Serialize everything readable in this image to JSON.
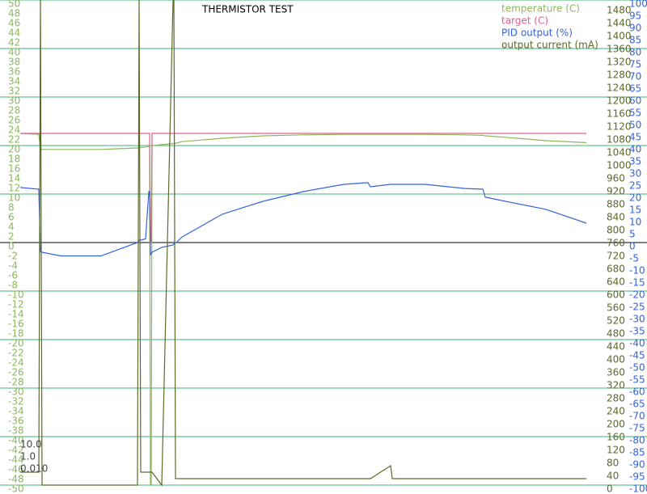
{
  "chart_data": {
    "type": "line",
    "title": "THERMISTOR TEST",
    "x": [
      0,
      23,
      25,
      27,
      50,
      100,
      145,
      147,
      149,
      155,
      159,
      160,
      161,
      162,
      163,
      175,
      189,
      190,
      192,
      193,
      200,
      250,
      300,
      350,
      400,
      430,
      433,
      458,
      460,
      500,
      550,
      572,
      575,
      600,
      650,
      700
    ],
    "xlim": [
      0,
      700
    ],
    "series": [
      {
        "name": "temperature (C)",
        "color": "#8db85a",
        "axis": "y",
        "values": [
          22.5,
          22.3,
          19.3,
          19.2,
          19.2,
          19.2,
          19.5,
          19.6,
          19.6,
          19.7,
          19.8,
          19.8,
          -50,
          -50,
          20,
          20.2,
          20.4,
          20.4,
          20.5,
          20.5,
          20.8,
          21.5,
          22,
          22.2,
          22.3,
          22.3,
          22.3,
          22.3,
          22.3,
          22.3,
          22.2,
          22.1,
          22,
          21.7,
          21,
          20.6
        ]
      },
      {
        "name": "target (C)",
        "color": "#e0608c",
        "axis": "y",
        "values": [
          22.5,
          22.5,
          22.5,
          22.5,
          22.5,
          22.5,
          22.5,
          22.5,
          22.5,
          22.5,
          22.5,
          22.5,
          0,
          0,
          22.5,
          22.5,
          22.5,
          22.5,
          22.5,
          22.5,
          22.5,
          22.5,
          22.5,
          22.5,
          22.5,
          22.5,
          22.5,
          22.5,
          22.5,
          22.5,
          22.5,
          22.5,
          22.5,
          22.5,
          22.5,
          22.5
        ]
      },
      {
        "name": "PID output (%)",
        "color": "#3462e0",
        "axis": "y2",
        "values": [
          22.7,
          22,
          -3.7,
          -4,
          -5.5,
          -5.5,
          0,
          1,
          1,
          1.5,
          21,
          21,
          -5,
          -4.5,
          -4,
          -2,
          -1,
          -0.5,
          0,
          0,
          2.3,
          11.7,
          17,
          21,
          24,
          24.7,
          23,
          24,
          24,
          24,
          22.3,
          22,
          18.7,
          17,
          13.7,
          8
        ]
      },
      {
        "name": "output current (mA)",
        "color": "#5a6a2a",
        "axis": "y3",
        "values": [
          40,
          40,
          1500,
          0,
          0,
          0,
          0,
          1500,
          40,
          40,
          40,
          40,
          40,
          40,
          40,
          0,
          1500,
          1500,
          20,
          20,
          20,
          20,
          20,
          20,
          20,
          20,
          20,
          60,
          20,
          20,
          20,
          20,
          20,
          20,
          20,
          20
        ]
      }
    ],
    "ylim": [
      -50,
      50
    ],
    "yticks": [
      -50,
      -48,
      -46,
      -44,
      -42,
      -40,
      -38,
      -36,
      -34,
      -32,
      -30,
      -28,
      -26,
      -24,
      -22,
      -20,
      -18,
      -16,
      -14,
      -12,
      -10,
      -8,
      -6,
      -4,
      -2,
      0,
      2,
      4,
      6,
      8,
      10,
      12,
      14,
      16,
      18,
      20,
      22,
      24,
      26,
      28,
      30,
      32,
      34,
      36,
      38,
      40,
      42,
      44,
      46,
      48,
      50
    ],
    "y2lim": [
      -100,
      100
    ],
    "y2ticks": [
      -100,
      -95,
      -90,
      -85,
      -80,
      -75,
      -70,
      -65,
      -60,
      -55,
      -50,
      -45,
      -40,
      -35,
      -30,
      -25,
      -20,
      -15,
      -10,
      -5,
      0,
      5,
      10,
      15,
      20,
      25,
      30,
      35,
      40,
      45,
      50,
      55,
      60,
      65,
      70,
      75,
      80,
      85,
      90,
      95,
      100
    ],
    "y3lim": [
      0,
      1500
    ],
    "y3ticks": [
      0,
      40,
      80,
      120,
      160,
      200,
      240,
      280,
      320,
      360,
      400,
      440,
      480,
      520,
      560,
      600,
      640,
      680,
      720,
      760,
      800,
      840,
      880,
      920,
      960,
      1000,
      1040,
      1080,
      1120,
      1160,
      1200,
      1240,
      1280,
      1320,
      1360,
      1400,
      1440,
      1480
    ],
    "annotations": [
      "10.0",
      "1.0",
      "0.010"
    ],
    "grid": true,
    "legend": "upper right"
  }
}
